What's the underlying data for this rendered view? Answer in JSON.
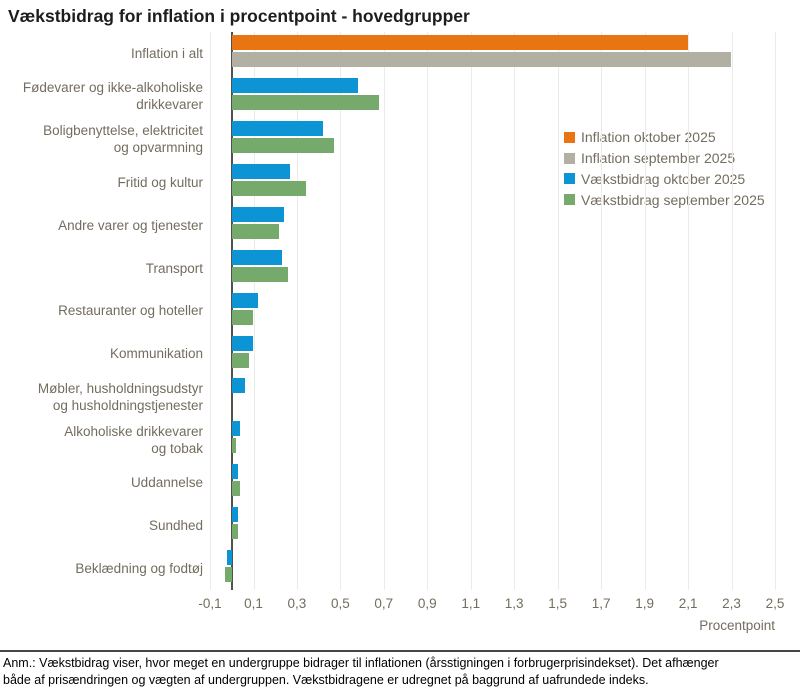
{
  "colors": {
    "inflation_oktober": "#e87511",
    "inflation_september": "#b2b0a3",
    "vaekstbidrag_oktober": "#0d94d4",
    "vaekstbidrag_september": "#76a96c",
    "grid": "#ebebe7",
    "zero_axis": "#51544a",
    "label_text": "#736d5f",
    "separator": "#454545"
  },
  "chart_data": {
    "type": "bar",
    "orientation": "horizontal",
    "title": "Vækstbidrag for inflation i procentpoint - hovedgrupper",
    "xlabel": "Procentpoint",
    "xlim": [
      -0.1,
      2.5
    ],
    "xticks": [
      -0.1,
      0.1,
      0.3,
      0.5,
      0.7,
      0.9,
      1.1,
      1.3,
      1.5,
      1.7,
      1.9,
      2.1,
      2.3,
      2.5
    ],
    "xtick_labels": [
      "-0,1",
      "0,1",
      "0,3",
      "0,5",
      "0,7",
      "0,9",
      "1,1",
      "1,3",
      "1,5",
      "1,7",
      "1,9",
      "2,1",
      "2,3",
      "2,5"
    ],
    "grid": true,
    "legend_position": "inside-right",
    "legend": [
      {
        "label": "Inflation oktober 2025",
        "color": "#e87511"
      },
      {
        "label": "Inflation september 2025",
        "color": "#b2b0a3"
      },
      {
        "label": "Vækstbidrag oktober 2025",
        "color": "#0d94d4"
      },
      {
        "label": "Vækstbidrag september 2025",
        "color": "#76a96c"
      }
    ],
    "rows": [
      {
        "label_lines": [
          "Inflation i alt"
        ],
        "series": [
          0,
          1
        ],
        "values": [
          2.1,
          2.3
        ]
      },
      {
        "label_lines": [
          "Fødevarer og ikke-alkoholiske",
          "drikkevarer"
        ],
        "series": [
          2,
          3
        ],
        "values": [
          0.58,
          0.68
        ]
      },
      {
        "label_lines": [
          "Boligbenyttelse, elektricitet",
          "og opvarmning"
        ],
        "series": [
          2,
          3
        ],
        "values": [
          0.42,
          0.47
        ]
      },
      {
        "label_lines": [
          "Fritid og kultur"
        ],
        "series": [
          2,
          3
        ],
        "values": [
          0.27,
          0.34
        ]
      },
      {
        "label_lines": [
          "Andre varer og tjenester"
        ],
        "series": [
          2,
          3
        ],
        "values": [
          0.24,
          0.22
        ]
      },
      {
        "label_lines": [
          "Transport"
        ],
        "series": [
          2,
          3
        ],
        "values": [
          0.23,
          0.26
        ]
      },
      {
        "label_lines": [
          "Restauranter og hoteller"
        ],
        "series": [
          2,
          3
        ],
        "values": [
          0.12,
          0.1
        ]
      },
      {
        "label_lines": [
          "Kommunikation"
        ],
        "series": [
          2,
          3
        ],
        "values": [
          0.1,
          0.08
        ]
      },
      {
        "label_lines": [
          "Møbler, husholdningsudstyr",
          "og husholdningstjenester"
        ],
        "series": [
          2,
          3
        ],
        "values": [
          0.06,
          0.0
        ]
      },
      {
        "label_lines": [
          "Alkoholiske drikkevarer",
          "og tobak"
        ],
        "series": [
          2,
          3
        ],
        "values": [
          0.04,
          0.02
        ]
      },
      {
        "label_lines": [
          "Uddannelse"
        ],
        "series": [
          2,
          3
        ],
        "values": [
          0.03,
          0.04
        ]
      },
      {
        "label_lines": [
          "Sundhed"
        ],
        "series": [
          2,
          3
        ],
        "values": [
          0.03,
          0.03
        ]
      },
      {
        "label_lines": [
          "Beklædning og fodtøj"
        ],
        "series": [
          2,
          3
        ],
        "values": [
          -0.02,
          -0.03
        ]
      }
    ]
  },
  "footnote": {
    "lines": [
      "Anm.: Vækstbidrag viser, hvor meget en undergruppe bidrager til inflationen (årsstigningen i forbrugerprisindekset). Det afhænger",
      "både af prisændringen og vægten af undergruppen. Vækstbidragene er udregnet på baggrund af uafrundede indeks."
    ]
  }
}
